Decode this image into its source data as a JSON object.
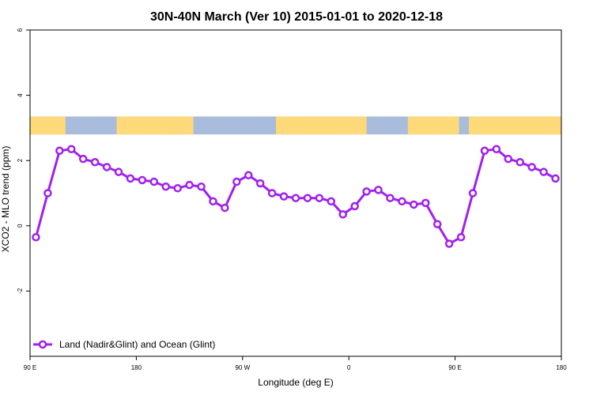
{
  "chart_data": {
    "type": "line",
    "title": "30N-40N March (Ver 10)   2015-01-01 to 2020-12-18",
    "xlabel": "Longitude (deg E)",
    "ylabel": "XCO2 - MLO trend (ppm)",
    "xlim": [
      -90,
      180
    ],
    "ylim": [
      -4,
      6
    ],
    "x_ticks": [
      {
        "value": -90,
        "label": "90 E"
      },
      {
        "value": -36,
        "label": "180"
      },
      {
        "value": 18,
        "label": "90 W"
      },
      {
        "value": 72,
        "label": "0"
      },
      {
        "value": 126,
        "label": "90 E"
      },
      {
        "value": 180,
        "label": "180"
      }
    ],
    "y_ticks": [
      {
        "value": -2,
        "label": "-2"
      },
      {
        "value": 0,
        "label": "0"
      },
      {
        "value": 2,
        "label": "2"
      },
      {
        "value": 4,
        "label": "4"
      },
      {
        "value": 6,
        "label": "6"
      }
    ],
    "grid": false,
    "legend_position": "bottom-left",
    "series": [
      {
        "name": "Land (Nadir&Glint) and Ocean (Glint)",
        "color": "#a020f0",
        "x": [
          -87,
          -81,
          -75,
          -69,
          -63,
          -57,
          -51,
          -45,
          -39,
          -33,
          -27,
          -21,
          -15,
          -9,
          -3,
          3,
          9,
          15,
          21,
          27,
          33,
          39,
          45,
          51,
          57,
          63,
          69,
          75,
          81,
          87,
          93,
          99,
          105,
          111,
          117,
          123,
          129,
          135,
          141,
          147,
          153,
          159,
          165,
          171,
          177
        ],
        "y": [
          -0.35,
          1.0,
          2.3,
          2.35,
          2.05,
          1.95,
          1.8,
          1.65,
          1.45,
          1.4,
          1.35,
          1.2,
          1.15,
          1.25,
          1.2,
          0.75,
          0.55,
          1.35,
          1.55,
          1.3,
          1.0,
          0.9,
          0.85,
          0.85,
          0.85,
          0.75,
          0.35,
          0.6,
          1.05,
          1.1,
          0.85,
          0.75,
          0.65,
          0.7,
          0.05,
          -0.55,
          -0.35,
          1.0,
          2.3,
          2.35,
          2.05,
          1.95,
          1.8,
          1.65,
          1.45
        ]
      }
    ],
    "map_strip": {
      "ylim": [
        2.8,
        3.35
      ],
      "ocean_color": "#a9bcdc",
      "land_color": "#fdd97a",
      "land_ranges": [
        [
          -90,
          -72
        ],
        [
          -46,
          -11
        ],
        [
          35,
          81
        ],
        [
          -17,
          -7
        ],
        [
          102,
          128
        ],
        [
          133,
          180
        ]
      ]
    }
  }
}
